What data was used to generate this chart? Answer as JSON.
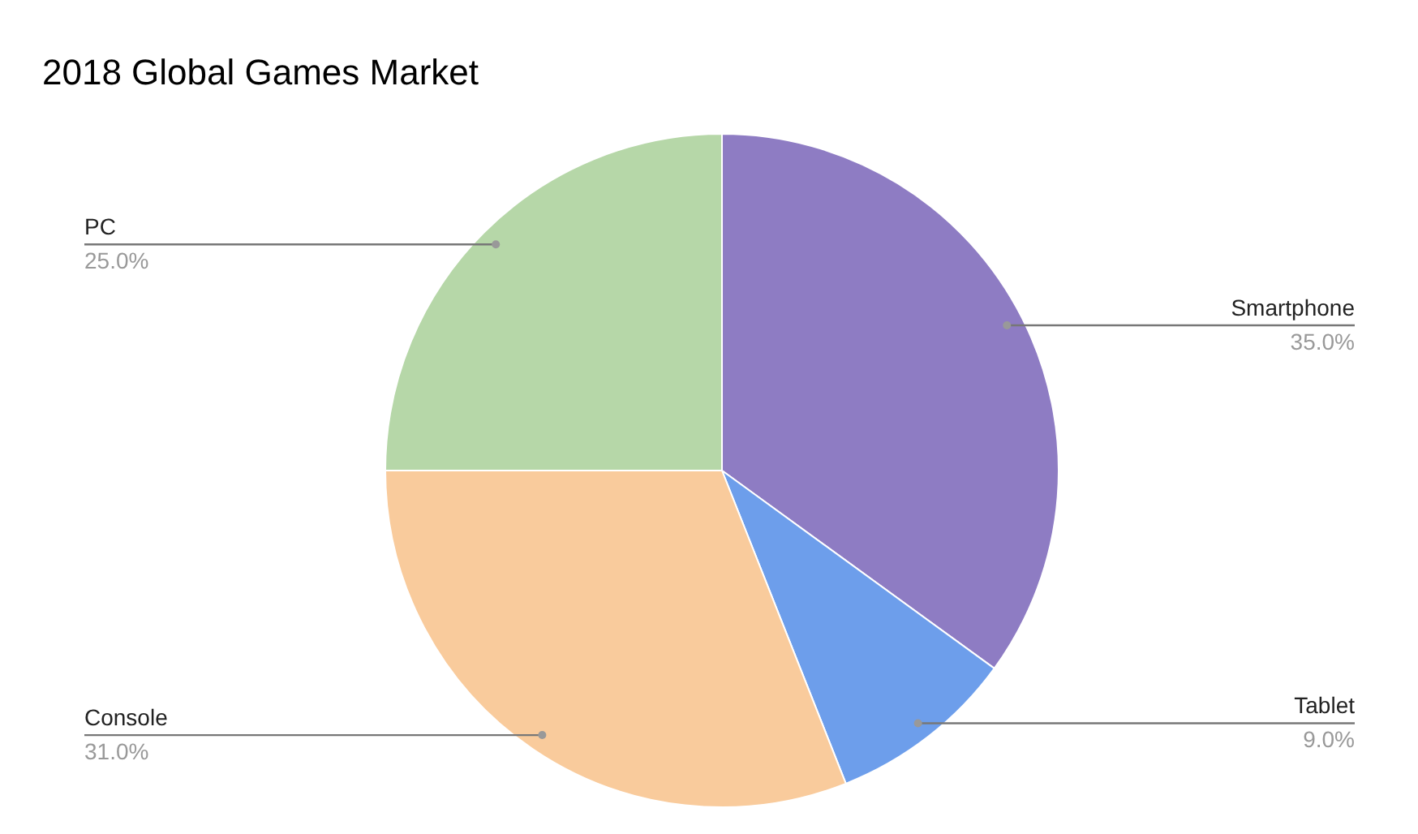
{
  "chart_data": {
    "type": "pie",
    "title": "2018 Global Games Market",
    "categories": [
      "Smartphone",
      "Tablet",
      "Console",
      "PC"
    ],
    "values": [
      35,
      9,
      31,
      25
    ],
    "value_labels": [
      "35.0%",
      "9.0%",
      "31.0%",
      "25.0%"
    ],
    "colors": [
      "#8e7cc3",
      "#6d9eeb",
      "#f9cb9c",
      "#b6d7a8"
    ],
    "legend": false
  }
}
